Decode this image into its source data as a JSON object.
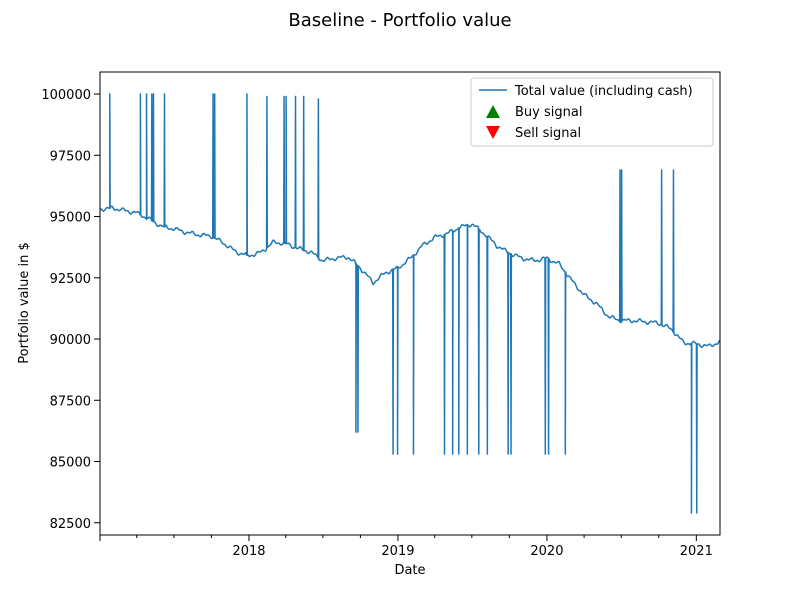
{
  "chart_data": {
    "type": "line",
    "title": "Baseline - Portfolio value",
    "xlabel": "Date",
    "ylabel": "Portfolio value in $",
    "xlim": [
      "2017-01-01",
      "2021-02-28"
    ],
    "ylim": [
      82000,
      100900
    ],
    "x_ticks": [
      "2018",
      "2019",
      "2020",
      "2021"
    ],
    "y_ticks": [
      "82500",
      "85000",
      "87500",
      "90000",
      "92500",
      "95000",
      "97500",
      "100000"
    ],
    "grid": false,
    "legend_position": "top-right",
    "legend": [
      "Total value (including cash)",
      "Buy signal",
      "Sell signal"
    ],
    "colors": {
      "line": "#1f77b4",
      "buy": "#008000",
      "sell": "#ff0000"
    },
    "series": [
      {
        "name": "Total value (including cash)",
        "baseline": [
          [
            "2017-01-01",
            95300
          ],
          [
            "2017-02-01",
            95350
          ],
          [
            "2017-03-01",
            95250
          ],
          [
            "2017-04-01",
            95150
          ],
          [
            "2017-05-01",
            94900
          ],
          [
            "2017-06-01",
            94600
          ],
          [
            "2017-07-01",
            94500
          ],
          [
            "2017-08-01",
            94350
          ],
          [
            "2017-09-01",
            94250
          ],
          [
            "2017-10-01",
            94200
          ],
          [
            "2017-11-01",
            93900
          ],
          [
            "2017-12-01",
            93550
          ],
          [
            "2018-01-01",
            93400
          ],
          [
            "2018-02-01",
            93550
          ],
          [
            "2018-03-01",
            93950
          ],
          [
            "2018-04-01",
            93900
          ],
          [
            "2018-05-01",
            93700
          ],
          [
            "2018-06-01",
            93550
          ],
          [
            "2018-07-01",
            93200
          ],
          [
            "2018-08-01",
            93300
          ],
          [
            "2018-09-01",
            93350
          ],
          [
            "2018-10-01",
            92900
          ],
          [
            "2018-11-01",
            92300
          ],
          [
            "2018-12-01",
            92700
          ],
          [
            "2019-01-01",
            92900
          ],
          [
            "2019-02-01",
            93300
          ],
          [
            "2019-03-01",
            93800
          ],
          [
            "2019-04-01",
            94150
          ],
          [
            "2019-05-01",
            94300
          ],
          [
            "2019-06-01",
            94550
          ],
          [
            "2019-07-01",
            94700
          ],
          [
            "2019-08-01",
            94300
          ],
          [
            "2019-09-01",
            93800
          ],
          [
            "2019-10-01",
            93500
          ],
          [
            "2019-11-01",
            93300
          ],
          [
            "2019-12-01",
            93200
          ],
          [
            "2020-01-01",
            93300
          ],
          [
            "2020-02-01",
            93050
          ],
          [
            "2020-03-01",
            92400
          ],
          [
            "2020-04-01",
            91800
          ],
          [
            "2020-05-01",
            91450
          ],
          [
            "2020-06-01",
            90900
          ],
          [
            "2020-07-01",
            90750
          ],
          [
            "2020-08-01",
            90750
          ],
          [
            "2020-09-01",
            90700
          ],
          [
            "2020-10-01",
            90650
          ],
          [
            "2020-11-01",
            90400
          ],
          [
            "2020-12-01",
            89850
          ],
          [
            "2021-01-01",
            89800
          ],
          [
            "2021-02-01",
            89700
          ],
          [
            "2021-02-28",
            89900
          ]
        ],
        "spikes": [
          [
            "2017-01-25",
            100000
          ],
          [
            "2017-04-10",
            100000
          ],
          [
            "2017-04-25",
            100000
          ],
          [
            "2017-05-08",
            100000
          ],
          [
            "2017-05-12",
            100000
          ],
          [
            "2017-06-08",
            100000
          ],
          [
            "2017-10-05",
            100000
          ],
          [
            "2017-10-09",
            100000
          ],
          [
            "2017-12-27",
            100000
          ],
          [
            "2018-02-14",
            99900
          ],
          [
            "2018-03-28",
            99900
          ],
          [
            "2018-04-02",
            99900
          ],
          [
            "2018-04-25",
            99900
          ],
          [
            "2018-05-15",
            99900
          ],
          [
            "2018-06-20",
            99800
          ],
          [
            "2018-09-20",
            86200
          ],
          [
            "2018-09-25",
            86200
          ],
          [
            "2018-12-20",
            85300
          ],
          [
            "2018-12-31",
            85300
          ],
          [
            "2019-02-08",
            85300
          ],
          [
            "2019-04-25",
            85300
          ],
          [
            "2019-05-15",
            85300
          ],
          [
            "2019-05-30",
            85300
          ],
          [
            "2019-06-20",
            85300
          ],
          [
            "2019-07-18",
            85300
          ],
          [
            "2019-08-08",
            85300
          ],
          [
            "2019-09-28",
            85300
          ],
          [
            "2019-10-05",
            85300
          ],
          [
            "2019-12-28",
            85300
          ],
          [
            "2020-01-05",
            85300
          ],
          [
            "2020-02-15",
            85300
          ],
          [
            "2020-06-28",
            96900
          ],
          [
            "2020-07-02",
            96900
          ],
          [
            "2020-10-08",
            96900
          ],
          [
            "2020-11-06",
            96900
          ],
          [
            "2020-12-20",
            82900
          ],
          [
            "2021-01-02",
            82900
          ]
        ]
      }
    ]
  }
}
